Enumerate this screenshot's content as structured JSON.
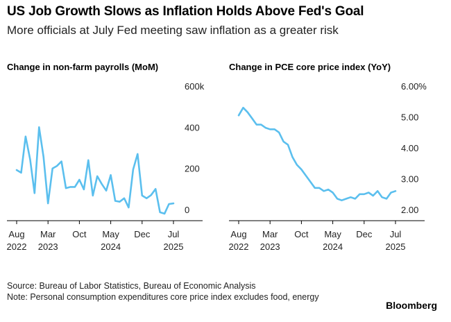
{
  "title": "US Job Growth Slows as Inflation Holds Above Fed's Goal",
  "subtitle": "More officials at July Fed meeting saw inflation as a greater risk",
  "footer": {
    "source": "Source: Bureau of Labor Statistics, Bureau of Economic Analysis",
    "note": "Note: Personal consumption expenditures core price index excludes food, energy",
    "brand": "Bloomberg"
  },
  "colors": {
    "series": "#5bbfee",
    "axis": "#000000"
  },
  "x_ticks": [
    {
      "date": "2022-08",
      "line1": "Aug",
      "line2": "2022"
    },
    {
      "date": "2023-03",
      "line1": "Mar",
      "line2": "2023"
    },
    {
      "date": "2023-10",
      "line1": "Oct",
      "line2": ""
    },
    {
      "date": "2024-05",
      "line1": "May",
      "line2": "2024"
    },
    {
      "date": "2024-12",
      "line1": "Dec",
      "line2": ""
    },
    {
      "date": "2025-07",
      "line1": "Jul",
      "line2": "2025"
    }
  ],
  "chart_data": [
    {
      "type": "line",
      "title": "Change in non-farm payrolls (MoM)",
      "y_ticks": [
        "600k",
        "400",
        "200",
        "0"
      ],
      "ylim": [
        0,
        600000
      ],
      "grid": false,
      "series": [
        {
          "x": [
            "2022-08",
            "2022-09",
            "2022-10",
            "2022-11",
            "2022-12",
            "2023-01",
            "2023-02",
            "2023-03",
            "2023-04",
            "2023-05",
            "2023-06",
            "2023-07",
            "2023-08",
            "2023-09",
            "2023-10",
            "2023-11",
            "2023-12",
            "2024-01",
            "2024-02",
            "2024-03",
            "2024-04",
            "2024-05",
            "2024-06",
            "2024-07",
            "2024-08",
            "2024-09",
            "2024-10",
            "2024-11",
            "2024-12",
            "2025-01",
            "2025-02",
            "2025-03",
            "2025-04",
            "2025-05",
            "2025-06",
            "2025-07"
          ],
          "y": [
            192000,
            179000,
            355000,
            244000,
            80000,
            400000,
            257000,
            30000,
            200000,
            212000,
            234000,
            104000,
            110000,
            110000,
            145000,
            98000,
            240000,
            68000,
            162000,
            124000,
            92000,
            168000,
            42000,
            38000,
            55000,
            10000,
            195000,
            270000,
            68000,
            55000,
            70000,
            100000,
            -13000,
            -20000,
            27000,
            30000
          ]
        }
      ]
    },
    {
      "type": "line",
      "title": "Change in PCE core price index (YoY)",
      "y_ticks": [
        "6.00%",
        "5.00",
        "4.00",
        "3.00",
        "2.00"
      ],
      "ylim": [
        2.0,
        6.0
      ],
      "grid": false,
      "series": [
        {
          "x": [
            "2022-08",
            "2022-09",
            "2022-10",
            "2022-11",
            "2022-12",
            "2023-01",
            "2023-02",
            "2023-03",
            "2023-04",
            "2023-05",
            "2023-06",
            "2023-07",
            "2023-08",
            "2023-09",
            "2023-10",
            "2023-11",
            "2023-12",
            "2024-01",
            "2024-02",
            "2024-03",
            "2024-04",
            "2024-05",
            "2024-06",
            "2024-07",
            "2024-08",
            "2024-09",
            "2024-10",
            "2024-11",
            "2024-12",
            "2025-01",
            "2025-02",
            "2025-03",
            "2025-04",
            "2025-05",
            "2025-06",
            "2025-07"
          ],
          "y": [
            5.05,
            5.3,
            5.15,
            4.95,
            4.75,
            4.75,
            4.65,
            4.6,
            4.6,
            4.5,
            4.2,
            4.1,
            3.7,
            3.45,
            3.3,
            3.1,
            2.9,
            2.7,
            2.7,
            2.6,
            2.65,
            2.55,
            2.35,
            2.3,
            2.35,
            2.4,
            2.35,
            2.5,
            2.5,
            2.55,
            2.45,
            2.6,
            2.4,
            2.35,
            2.55,
            2.6
          ]
        }
      ]
    }
  ]
}
